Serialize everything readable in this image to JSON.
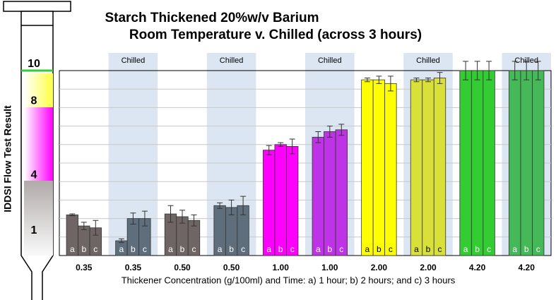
{
  "chart_data": {
    "type": "bar",
    "title": "Starch Thickened 20%w/v Barium",
    "subtitle": "Room Temperature v. Chilled (across 3 hours)",
    "x_label": "Thickener Concentration (g/100ml) and Time: a) 1 hour; b) 2 hours; and c) 3 hours",
    "y_label": "IDDSI Flow Test Result",
    "categories": [
      "0.35",
      "0.35",
      "0.50",
      "0.50",
      "1.00",
      "1.00",
      "2.00",
      "2.00",
      "4.20",
      "4.20"
    ],
    "category_colors": [
      "#6e6564",
      "#5f6e7c",
      "#6e6564",
      "#5f6e7c",
      "#ff00ff",
      "#bf33e6",
      "#ffff00",
      "#d9e03a",
      "#33cc33",
      "#45b857"
    ],
    "highlight": {
      "label": "Chilled",
      "categories": [
        1,
        3,
        5,
        7,
        9
      ],
      "color": "#dce6f2"
    },
    "series": [
      {
        "name": "a",
        "values": [
          2.2,
          0.8,
          2.25,
          2.7,
          5.7,
          6.4,
          9.5,
          9.5,
          10,
          10
        ],
        "errors": [
          0.05,
          0.1,
          0.45,
          0.15,
          0.25,
          0.3,
          0.1,
          0.1,
          0.5,
          0.5
        ]
      },
      {
        "name": "b",
        "values": [
          1.6,
          2.0,
          2.1,
          2.6,
          6.0,
          6.7,
          9.5,
          9.5,
          10,
          10
        ],
        "errors": [
          0.2,
          0.3,
          0.35,
          0.4,
          0.1,
          0.3,
          0.2,
          0.1,
          0.5,
          0.5
        ]
      },
      {
        "name": "c",
        "values": [
          1.5,
          2.0,
          1.9,
          2.7,
          5.9,
          6.8,
          9.3,
          9.6,
          10,
          10
        ],
        "errors": [
          0.4,
          0.4,
          0.3,
          0.5,
          0.4,
          0.3,
          0.4,
          0.3,
          0.5,
          0.5
        ]
      }
    ],
    "ylim": [
      0,
      10
    ],
    "yticks": [
      1,
      4,
      8,
      10
    ],
    "gridlines": [
      1,
      2,
      3,
      4,
      5,
      6,
      7,
      8,
      9
    ]
  }
}
